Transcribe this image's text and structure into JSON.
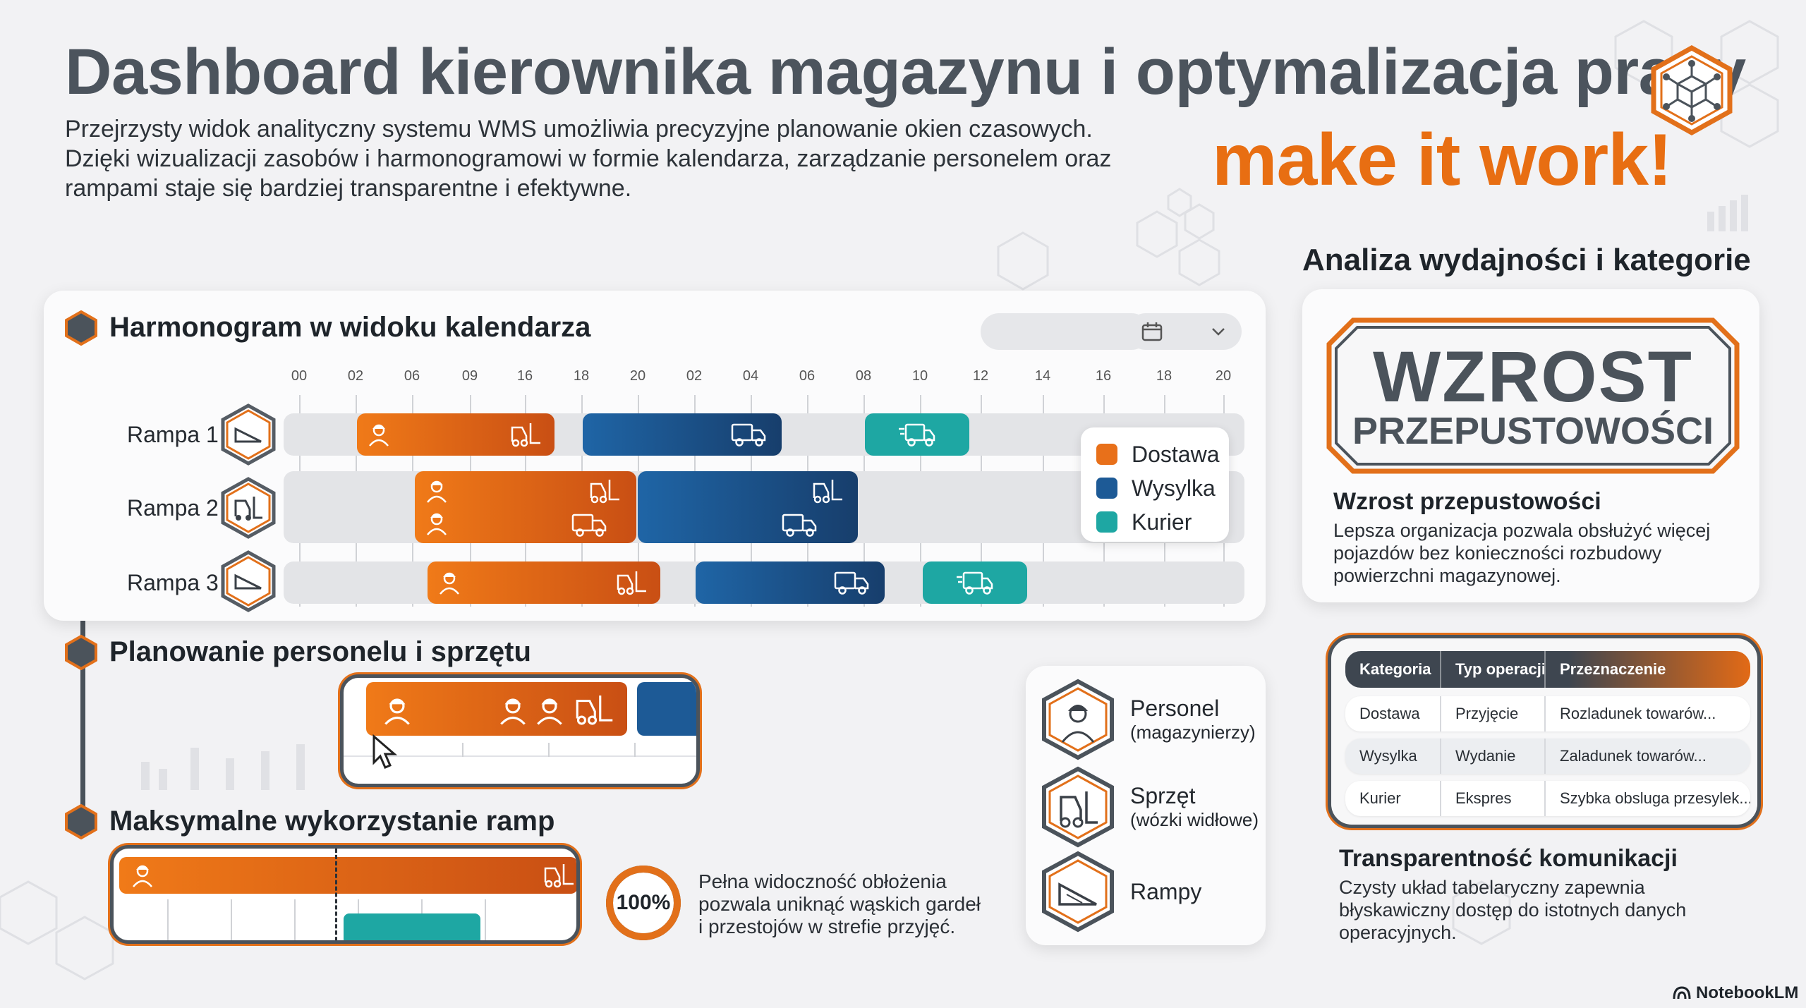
{
  "header": {
    "title": "Dashboard kierownika magazynu i optymalizacja pracy",
    "subtitle_lines": [
      "Przejrzysty widok analityczny systemu WMS umożliwia precyzyjne planowanie okien czasowych.",
      "Dzięki wizualizacji zasobów i harmonogramowi w formie kalendarza, zarządzanie personelem oraz",
      "rampami staje się bardziej transparentne i efektywne."
    ],
    "slogan": "make it work!",
    "logo_icon": "cube-network-icon"
  },
  "calendar": {
    "title": "Harmonogram w widoku kalendarza",
    "time_ticks": [
      "00",
      "02",
      "06",
      "09",
      "16",
      "18",
      "20",
      "02",
      "04",
      "06",
      "08",
      "10",
      "12",
      "14",
      "16",
      "18",
      "20"
    ],
    "ramps": [
      {
        "label": "Rampa 1",
        "icon": "ramp-icon"
      },
      {
        "label": "Rampa 2",
        "icon": "forklift-icon"
      },
      {
        "label": "Rampa 3",
        "icon": "ramp-icon"
      }
    ],
    "legend": [
      {
        "label": "Dostawa",
        "color": "#e8701a"
      },
      {
        "label": "Wysylka",
        "color": "#1d5a96"
      },
      {
        "label": "Kurier",
        "color": "#1ea7a3"
      }
    ],
    "controls": {
      "calendar_icon": "calendar-icon",
      "dropdown_icon": "chevron-down-icon"
    }
  },
  "staff": {
    "title": "Planowanie personelu i sprzętu"
  },
  "ramps_max": {
    "title": "Maksymalne wykorzystanie ramp",
    "percent_label": "100%",
    "percent_value": 100,
    "text_lines": [
      "Pełna widoczność obłożenia",
      "pozwala uniknąć wąskich gardeł",
      "i przestojów w strefie przyjęć."
    ]
  },
  "resources": [
    {
      "title": "Personel",
      "sub": "(magazynierzy)",
      "icon": "worker-icon"
    },
    {
      "title": "Sprzęt",
      "sub": "(wózki widłowe)",
      "icon": "forklift-icon"
    },
    {
      "title": "Rampy",
      "sub": "",
      "icon": "ramp-icon"
    }
  ],
  "analysis": {
    "title": "Analiza wydajności i kategorie",
    "badge_big": "WZROST",
    "badge_sub": "PRZEPUSTOWOŚCI",
    "growth_title": "Wzrost przepustowości",
    "growth_lines": [
      "Lepsza organizacja pozwala obsłużyć więcej",
      "pojazdów bez konieczności rozbudowy",
      "powierzchni magazynowej."
    ],
    "table": {
      "headers": [
        "Kategoria",
        "Typ operacji",
        "Przeznaczenie"
      ],
      "rows": [
        [
          "Dostawa",
          "Przyjęcie",
          "Rozladunek towarów..."
        ],
        [
          "Wysylka",
          "Wydanie",
          "Zaladunek towarów..."
        ],
        [
          "Kurier",
          "Ekspres",
          "Szybka obsluga przesylek..."
        ]
      ]
    },
    "transparency_title": "Transparentność komunikacji",
    "transparency_lines": [
      "Czysty układ tabelaryczny zapewnia",
      "błyskawiczny dostęp do istotnych danych",
      "operacyjnych."
    ]
  },
  "footer": {
    "brand": "NotebookLM",
    "brand_icon": "notebooklm-icon"
  }
}
